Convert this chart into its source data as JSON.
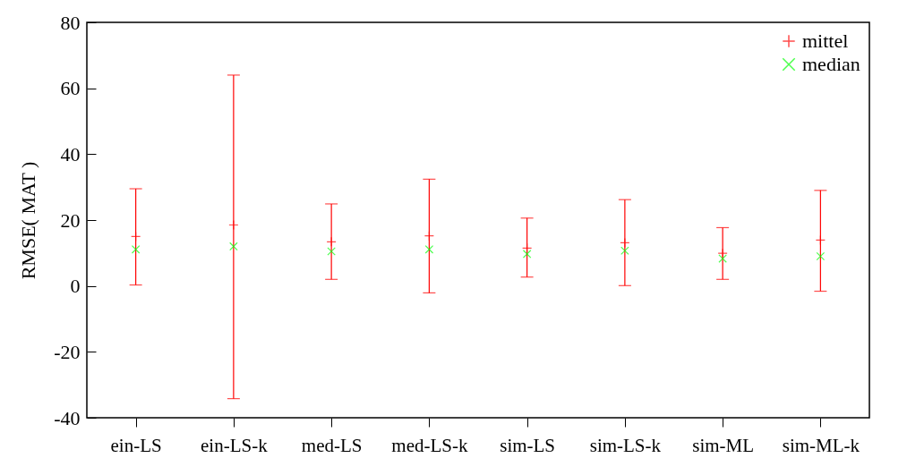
{
  "chart_data": {
    "type": "scatter",
    "ylabel": "RMSE( MAT )",
    "categories": [
      "ein-LS",
      "ein-LS-k",
      "med-LS",
      "med-LS-k",
      "sim-LS",
      "sim-LS-k",
      "sim-ML",
      "sim-ML-k"
    ],
    "series": [
      {
        "name": "mittel",
        "color": "#ff0000",
        "values": [
          15.0,
          18.5,
          13.4,
          15.2,
          11.5,
          13.1,
          9.9,
          13.9
        ],
        "errors": [
          [
            0.3,
            29.5
          ],
          [
            -34.2,
            64
          ],
          [
            2.0,
            24.9
          ],
          [
            -2.1,
            32.4
          ],
          [
            2.7,
            20.6
          ],
          [
            0.1,
            26.2
          ],
          [
            2.0,
            17.7
          ],
          [
            -1.6,
            29.0
          ]
        ]
      },
      {
        "name": "median",
        "color": "#00ff00",
        "marker": "cross",
        "values": [
          11.1,
          12.0,
          10.5,
          11.1,
          9.7,
          10.7,
          8.3,
          9.0
        ]
      }
    ],
    "ylim": [
      -40,
      80
    ],
    "yticks": [
      -40,
      -20,
      0,
      20,
      40,
      60,
      80
    ],
    "grid": false,
    "legend": "top right"
  }
}
